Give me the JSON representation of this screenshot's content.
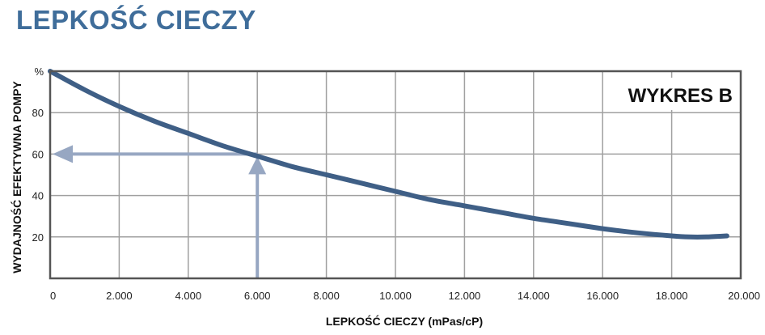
{
  "page": {
    "title": "LEPKOŚĆ CIECZY"
  },
  "chart_data": {
    "type": "line",
    "badge": "WYKRES B",
    "xlabel": "LEPKOŚĆ CIECZY (mPas/cP)",
    "ylabel": "WYDAJNOŚĆ EFEKTYWNA POMPY",
    "x_tick_labels": [
      "0",
      "2.000",
      "4.000",
      "6.000",
      "8.000",
      "10.000",
      "12.000",
      "14.000",
      "16.000",
      "18.000",
      "20.000"
    ],
    "y_tick_labels": [
      "%",
      "80",
      "60",
      "40",
      "20"
    ],
    "xlim": [
      0,
      20000
    ],
    "ylim": [
      0,
      100
    ],
    "grid": true,
    "series": [
      {
        "x": [
          0,
          1000,
          2000,
          3000,
          4000,
          5000,
          6000,
          7000,
          8000,
          9000,
          10000,
          11000,
          12000,
          13000,
          14000,
          15000,
          16000,
          17000,
          18000,
          18500,
          19000,
          19600
        ],
        "y": [
          100,
          91,
          83,
          76,
          70,
          64,
          59,
          54,
          50,
          46,
          42,
          38,
          35,
          32,
          29,
          26.5,
          24,
          22,
          20.5,
          20,
          20,
          20.5
        ]
      }
    ],
    "annotation": {
      "x": 6000,
      "y": 60
    },
    "colors": {
      "line": "#3f5f86",
      "grid": "#a0a0a0",
      "annotation": "#97a7c2",
      "title": "#3f6d9a"
    }
  }
}
